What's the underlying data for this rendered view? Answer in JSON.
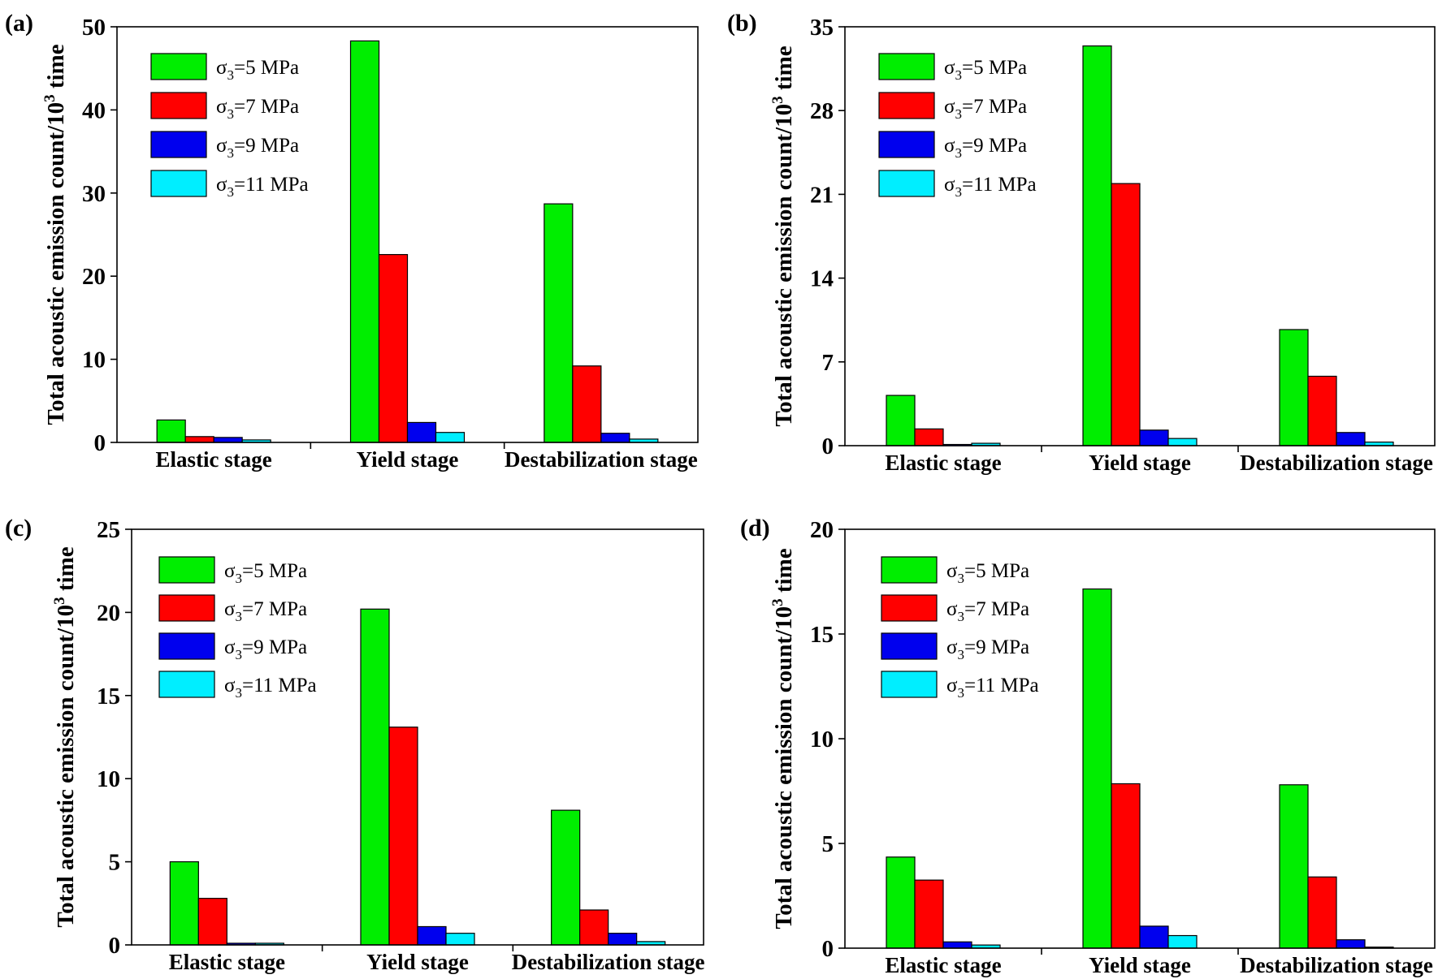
{
  "colors": {
    "s5": "#00ee00",
    "s7": "#ff0000",
    "s9": "#0000ee",
    "s11": "#00eeff"
  },
  "chart_data": [
    {
      "type": "bar",
      "panel_label": "(a)",
      "ylabel": "Total acoustic emission count/10³ time",
      "ylabel_main": "Total acoustic emission count/10",
      "ylabel_sup": "3",
      "ylabel_tail": " time",
      "categories": [
        "Elastic stage",
        "Yield stage",
        "Destabilization stage"
      ],
      "ylim": [
        0,
        50
      ],
      "yticks": [
        0,
        10,
        20,
        30,
        40,
        50
      ],
      "legend_position": "top-left",
      "series": [
        {
          "name": "σ3=5 MPa",
          "label_main": "σ",
          "label_sub": "3",
          "label_tail": "=5 MPa",
          "color_key": "s5",
          "values": [
            2.7,
            48.3,
            28.7
          ]
        },
        {
          "name": "σ3=7 MPa",
          "label_main": "σ",
          "label_sub": "3",
          "label_tail": "=7 MPa",
          "color_key": "s7",
          "values": [
            0.7,
            22.6,
            9.2
          ]
        },
        {
          "name": "σ3=9 MPa",
          "label_main": "σ",
          "label_sub": "3",
          "label_tail": "=9 MPa",
          "color_key": "s9",
          "values": [
            0.6,
            2.4,
            1.1
          ]
        },
        {
          "name": "σ3=11 MPa",
          "label_main": "σ",
          "label_sub": "3",
          "label_tail": "=11 MPa",
          "color_key": "s11",
          "values": [
            0.3,
            1.2,
            0.4
          ]
        }
      ]
    },
    {
      "type": "bar",
      "panel_label": "(b)",
      "ylabel": "Total acoustic emission count/10³ time",
      "ylabel_main": "Total acoustic emission count/10",
      "ylabel_sup": "3",
      "ylabel_tail": " time",
      "categories": [
        "Elastic stage",
        "Yield stage",
        "Destabilization stage"
      ],
      "ylim": [
        0,
        35
      ],
      "yticks": [
        0,
        7,
        14,
        21,
        28,
        35
      ],
      "legend_position": "top-left",
      "series": [
        {
          "name": "σ3=5 MPa",
          "label_main": "σ",
          "label_sub": "3",
          "label_tail": "=5 MPa",
          "color_key": "s5",
          "values": [
            4.2,
            33.4,
            9.7
          ]
        },
        {
          "name": "σ3=7 MPa",
          "label_main": "σ",
          "label_sub": "3",
          "label_tail": "=7 MPa",
          "color_key": "s7",
          "values": [
            1.4,
            21.9,
            5.8
          ]
        },
        {
          "name": "σ3=9 MPa",
          "label_main": "σ",
          "label_sub": "3",
          "label_tail": "=9 MPa",
          "color_key": "s9",
          "values": [
            0.1,
            1.3,
            1.1
          ]
        },
        {
          "name": "σ3=11 MPa",
          "label_main": "σ",
          "label_sub": "3",
          "label_tail": "=11 MPa",
          "color_key": "s11",
          "values": [
            0.2,
            0.6,
            0.3
          ]
        }
      ]
    },
    {
      "type": "bar",
      "panel_label": "(c)",
      "ylabel": "Total acoustic emission count/10³ time",
      "ylabel_main": "Total acoustic emission count/10",
      "ylabel_sup": "3",
      "ylabel_tail": " time",
      "categories": [
        "Elastic stage",
        "Yield stage",
        "Destabilization stage"
      ],
      "ylim": [
        0,
        25
      ],
      "yticks": [
        0,
        5,
        10,
        15,
        20,
        25
      ],
      "legend_position": "top-left",
      "series": [
        {
          "name": "σ3=5 MPa",
          "label_main": "σ",
          "label_sub": "3",
          "label_tail": "=5 MPa",
          "color_key": "s5",
          "values": [
            5.0,
            20.2,
            8.1
          ]
        },
        {
          "name": "σ3=7 MPa",
          "label_main": "σ",
          "label_sub": "3",
          "label_tail": "=7 MPa",
          "color_key": "s7",
          "values": [
            2.8,
            13.1,
            2.1
          ]
        },
        {
          "name": "σ3=9 MPa",
          "label_main": "σ",
          "label_sub": "3",
          "label_tail": "=9 MPa",
          "color_key": "s9",
          "values": [
            0.1,
            1.1,
            0.7
          ]
        },
        {
          "name": "σ3=11 MPa",
          "label_main": "σ",
          "label_sub": "3",
          "label_tail": "=11 MPa",
          "color_key": "s11",
          "values": [
            0.1,
            0.7,
            0.2
          ]
        }
      ]
    },
    {
      "type": "bar",
      "panel_label": "(d)",
      "ylabel": "Total acoustic emission count/10³ time",
      "ylabel_main": "Total acoustic emission count/10",
      "ylabel_sup": "3",
      "ylabel_tail": " time",
      "categories": [
        "Elastic stage",
        "Yield stage",
        "Destabilization stage"
      ],
      "ylim": [
        0,
        20
      ],
      "yticks": [
        0,
        5,
        10,
        15,
        20
      ],
      "legend_position": "top-left",
      "series": [
        {
          "name": "σ3=5 MPa",
          "label_main": "σ",
          "label_sub": "3",
          "label_tail": "=5 MPa",
          "color_key": "s5",
          "values": [
            4.35,
            17.15,
            7.8
          ]
        },
        {
          "name": "σ3=7 MPa",
          "label_main": "σ",
          "label_sub": "3",
          "label_tail": "=7 MPa",
          "color_key": "s7",
          "values": [
            3.25,
            7.85,
            3.4
          ]
        },
        {
          "name": "σ3=9 MPa",
          "label_main": "σ",
          "label_sub": "3",
          "label_tail": "=9 MPa",
          "color_key": "s9",
          "values": [
            0.3,
            1.05,
            0.4
          ]
        },
        {
          "name": "σ3=11 MPa",
          "label_main": "σ",
          "label_sub": "3",
          "label_tail": "=11 MPa",
          "color_key": "s11",
          "values": [
            0.15,
            0.6,
            0.05
          ]
        }
      ]
    }
  ]
}
